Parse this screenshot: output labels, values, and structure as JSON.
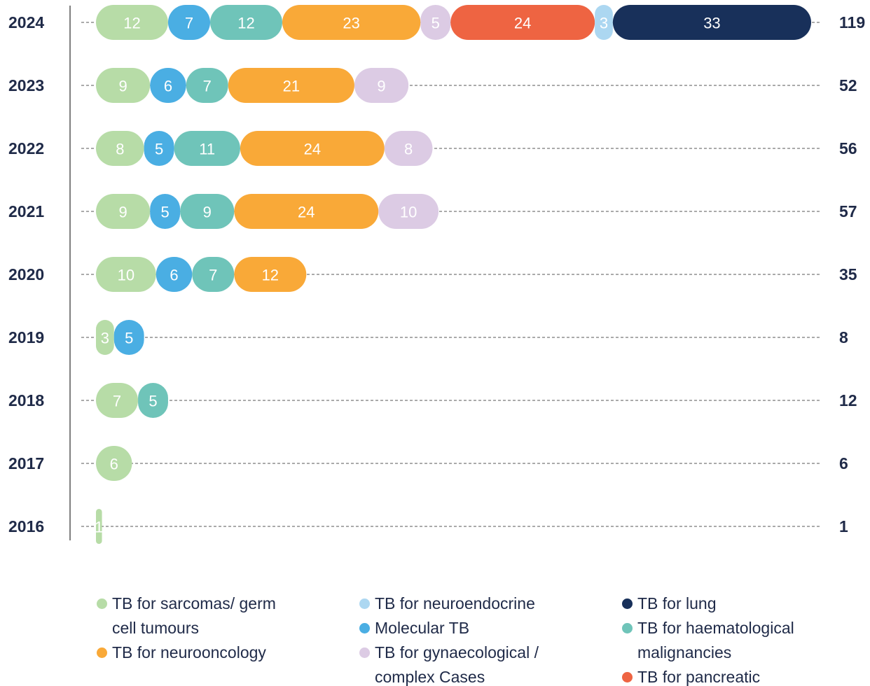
{
  "chart_data": {
    "type": "stacked-bar-horizontal",
    "categories": [
      "2024",
      "2023",
      "2022",
      "2021",
      "2020",
      "2019",
      "2018",
      "2017",
      "2016"
    ],
    "totals": [
      119,
      52,
      56,
      57,
      35,
      8,
      12,
      6,
      1
    ],
    "series": [
      {
        "name": "TB for sarcomas/ germ cell tumours",
        "color": "#b7dca7",
        "values": [
          12,
          9,
          8,
          9,
          10,
          3,
          7,
          6,
          1
        ]
      },
      {
        "name": "Molecular TB",
        "color": "#4aaee3",
        "values": [
          7,
          6,
          5,
          5,
          6,
          5,
          null,
          null,
          null
        ]
      },
      {
        "name": "TB for haematological malignancies",
        "color": "#6fc4b9",
        "values": [
          12,
          7,
          11,
          9,
          7,
          null,
          5,
          null,
          null
        ]
      },
      {
        "name": "TB for neurooncology",
        "color": "#f9a938",
        "values": [
          23,
          21,
          24,
          24,
          12,
          null,
          null,
          null,
          null
        ]
      },
      {
        "name": "TB for gynaecological / complex Cases",
        "color": "#dccbe4",
        "values": [
          5,
          9,
          8,
          10,
          null,
          null,
          null,
          null,
          null
        ]
      },
      {
        "name": "TB for pancreatic",
        "color": "#ee6442",
        "values": [
          24,
          null,
          null,
          null,
          null,
          null,
          null,
          null,
          null
        ]
      },
      {
        "name": "TB for neuroendocrine",
        "color": "#acd7f1",
        "values": [
          3,
          null,
          null,
          null,
          null,
          null,
          null,
          null,
          null
        ]
      },
      {
        "name": "TB for lung",
        "color": "#18305a",
        "values": [
          33,
          null,
          null,
          null,
          null,
          null,
          null,
          null,
          null
        ]
      }
    ]
  }
}
